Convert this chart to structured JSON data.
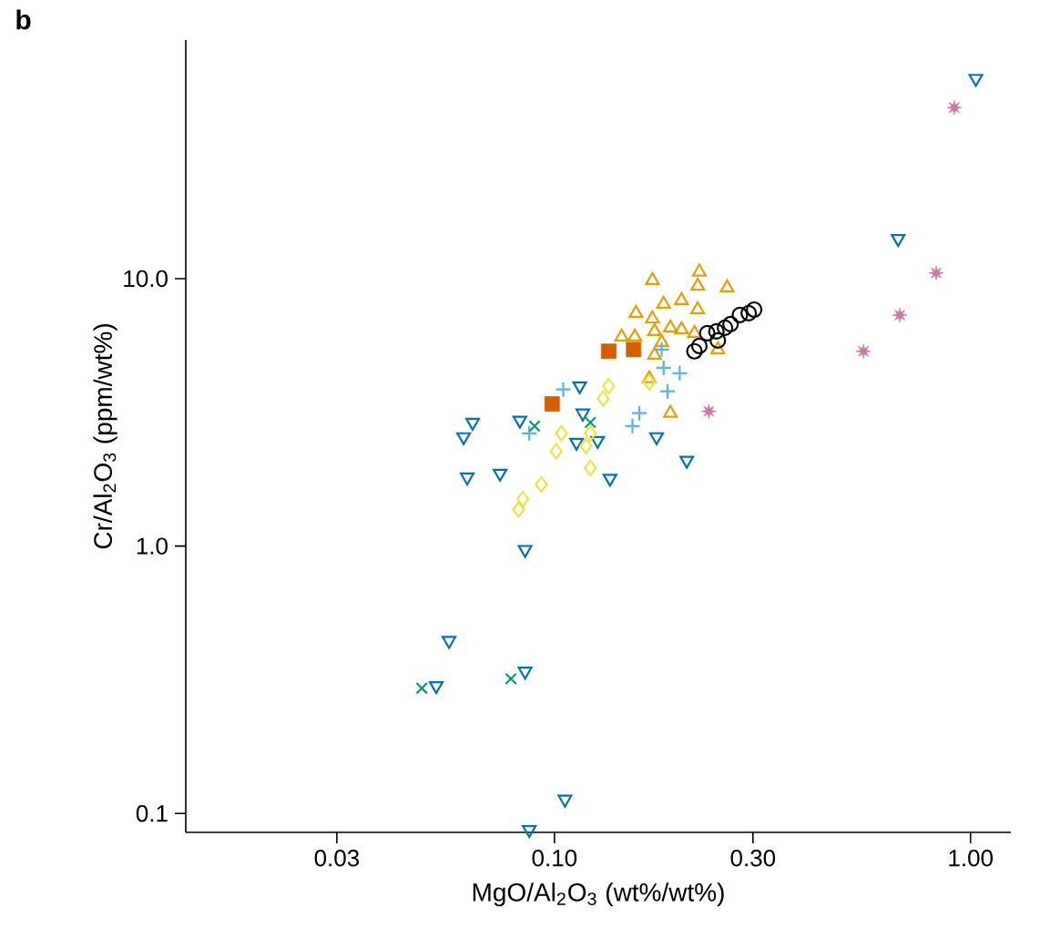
{
  "chart_data": {
    "type": "scatter",
    "title": "b",
    "xlabel": "MgO/Al$_{2}$O$_{3}$ (wt%/wt%)",
    "ylabel": "Cr/Al$_{2}$O$_{3}$ (ppm/wt%)",
    "log": "xy",
    "grid": false,
    "xlim": [
      0.013,
      1.25
    ],
    "ylim": [
      0.085,
      78
    ],
    "xticks": [
      {
        "value": 0.03,
        "label": "0.03"
      },
      {
        "value": 0.1,
        "label": "0.10"
      },
      {
        "value": 0.3,
        "label": "0.30"
      },
      {
        "value": 1,
        "label": "1.00"
      }
    ],
    "yticks": [
      {
        "value": 0.1,
        "label": "0.1"
      },
      {
        "value": 1,
        "label": "1.0"
      },
      {
        "value": 10,
        "label": "10.0"
      }
    ],
    "series": [
      {
        "color": "#0072b2",
        "marker": "triangle_down",
        "x": [
          1.03,
          0.67,
          0.115,
          0.0636,
          0.0605,
          0.0826,
          0.117,
          0.113,
          0.127,
          0.176,
          0.208,
          0.0617,
          0.074,
          0.136,
          0.085,
          0.0558,
          0.052,
          0.085,
          0.106,
          0.087
        ],
        "values": [
          56,
          14.1,
          3.97,
          2.9,
          2.56,
          2.95,
          3.14,
          2.44,
          2.48,
          2.56,
          2.09,
          1.81,
          1.87,
          1.79,
          0.97,
          0.443,
          0.3,
          0.34,
          0.113,
          0.087
        ]
      },
      {
        "color": "#e69f00",
        "marker": "triangle",
        "x": [
          0.172,
          0.223,
          0.221,
          0.26,
          0.183,
          0.202,
          0.221,
          0.157,
          0.172,
          0.19,
          0.202,
          0.174,
          0.145,
          0.156,
          0.181,
          0.217,
          0.174,
          0.19,
          0.247,
          0.169
        ],
        "values": [
          9.85,
          10.6,
          9.39,
          9.25,
          8.03,
          8.29,
          7.66,
          7.43,
          7.08,
          6.55,
          6.45,
          6.35,
          6.06,
          6.06,
          5.78,
          6.25,
          5.18,
          3.14,
          5.43,
          4.23
        ]
      },
      {
        "color": "#f0e442",
        "marker": "diamond",
        "x": [
          0.135,
          0.131,
          0.169,
          0.104,
          0.101,
          0.122,
          0.119,
          0.122,
          0.093,
          0.084,
          0.082
        ],
        "values": [
          3.97,
          3.56,
          4.1,
          2.64,
          2.26,
          2.64,
          2.37,
          1.96,
          1.7,
          1.5,
          1.37
        ]
      },
      {
        "color": "#56b4e9",
        "marker": "plus",
        "x": [
          0.181,
          0.183,
          0.2,
          0.187,
          0.105,
          0.16,
          0.154,
          0.087
        ],
        "values": [
          5.43,
          4.64,
          4.43,
          3.79,
          3.85,
          3.14,
          2.81,
          2.64
        ]
      },
      {
        "color": "#d55e00",
        "marker": "square",
        "x": [
          0.135,
          0.155,
          0.0987
        ],
        "values": [
          5.35,
          5.43,
          3.4
        ]
      },
      {
        "color": "#000000",
        "marker": "circle",
        "x": [
          0.217,
          0.223,
          0.233,
          0.247,
          0.245,
          0.257,
          0.265,
          0.279,
          0.293,
          0.302
        ],
        "values": [
          5.35,
          5.6,
          6.25,
          5.87,
          6.35,
          6.55,
          6.76,
          7.31,
          7.43,
          7.66
        ]
      },
      {
        "color": "#009e73",
        "marker": "cross",
        "x": [
          0.048,
          0.0786,
          0.0896,
          0.122
        ],
        "values": [
          0.294,
          0.319,
          2.81,
          2.9
        ]
      },
      {
        "color": "#cc79a7",
        "marker": "star",
        "x": [
          0.914,
          0.827,
          0.676,
          0.553,
          0.235
        ],
        "values": [
          43.6,
          10.5,
          7.31,
          5.35,
          3.19
        ]
      }
    ]
  }
}
